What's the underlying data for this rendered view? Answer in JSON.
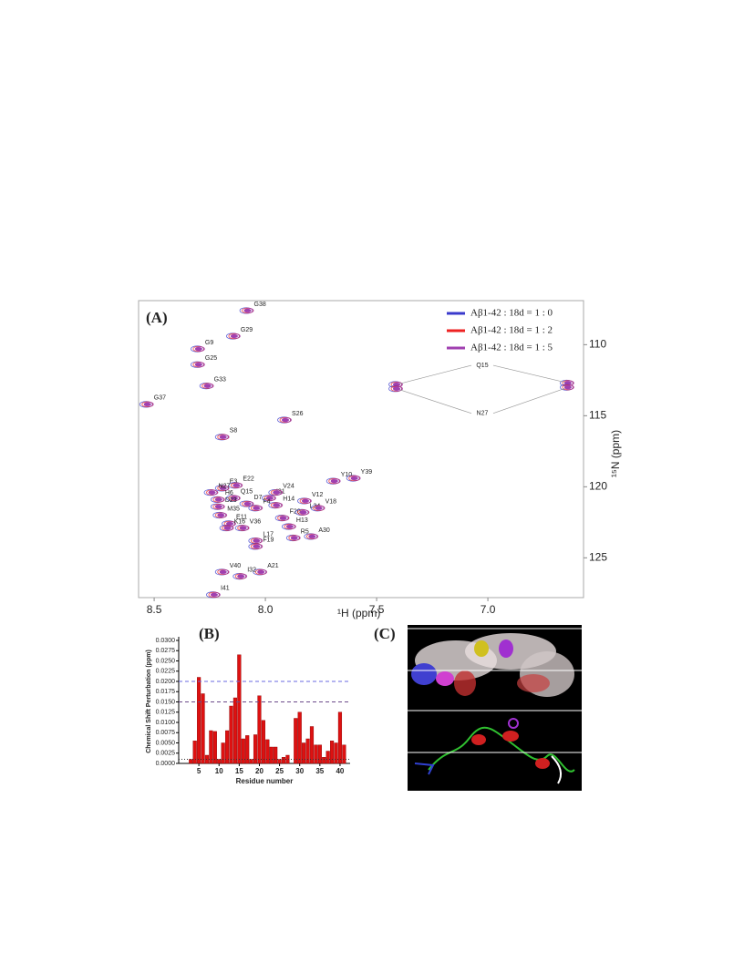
{
  "chart_data": [
    {
      "type": "scatter",
      "title": "(A)",
      "x_label": "¹H (ppm)",
      "y_label": "¹⁵N (ppm)",
      "xlim": [
        8.57,
        6.57
      ],
      "ylim": [
        106.9,
        127.8
      ],
      "xticks": [
        8.5,
        {
          "value": 8,
          "label": "8.0"
        },
        7.5,
        {
          "value": 7,
          "label": "7.0"
        }
      ],
      "yticks": [
        110,
        115,
        120,
        125
      ],
      "series": [
        {
          "name": "Aβ1-42 : 18d = 1 : 0",
          "color": "#3a3acc"
        },
        {
          "name": "Aβ1-42 : 18d = 1 : 2",
          "color": "#ee2222"
        },
        {
          "name": "Aβ1-42 : 18d = 1 : 5",
          "color": "#a040b0"
        }
      ],
      "peaks": [
        {
          "label": "G38",
          "x": 8.08,
          "y": 107.6
        },
        {
          "label": "G29",
          "x": 8.14,
          "y": 109.4
        },
        {
          "label": "G9",
          "x": 8.3,
          "y": 110.3
        },
        {
          "label": "G25",
          "x": 8.3,
          "y": 111.4
        },
        {
          "label": "G33",
          "x": 8.26,
          "y": 112.9
        },
        {
          "label": "G37",
          "x": 8.53,
          "y": 114.2
        },
        {
          "label": "S8",
          "x": 8.19,
          "y": 116.5
        },
        {
          "label": "S26",
          "x": 7.91,
          "y": 115.3
        },
        {
          "label": "E3",
          "x": 8.19,
          "y": 120.1
        },
        {
          "label": "E22",
          "x": 8.13,
          "y": 119.9
        },
        {
          "label": "N27",
          "x": 8.24,
          "y": 120.4
        },
        {
          "label": "H6",
          "x": 8.21,
          "y": 120.9
        },
        {
          "label": "Q15",
          "x": 8.14,
          "y": 120.8
        },
        {
          "label": "D23",
          "x": 8.21,
          "y": 121.4
        },
        {
          "label": "D7",
          "x": 8.08,
          "y": 121.2
        },
        {
          "label": "I31",
          "x": 7.98,
          "y": 120.8
        },
        {
          "label": "V24",
          "x": 7.95,
          "y": 120.4
        },
        {
          "label": "H14",
          "x": 7.95,
          "y": 121.3
        },
        {
          "label": "F4",
          "x": 8.04,
          "y": 121.5
        },
        {
          "label": "M35",
          "x": 8.2,
          "y": 122.0
        },
        {
          "label": "E11",
          "x": 8.16,
          "y": 122.6
        },
        {
          "label": "F20",
          "x": 7.92,
          "y": 122.2
        },
        {
          "label": "V12",
          "x": 7.82,
          "y": 121.0
        },
        {
          "label": "L34",
          "x": 7.83,
          "y": 121.8
        },
        {
          "label": "V18",
          "x": 7.76,
          "y": 121.5
        },
        {
          "label": "Y10",
          "x": 7.69,
          "y": 119.6
        },
        {
          "label": "Y39",
          "x": 7.6,
          "y": 119.4
        },
        {
          "label": "K16",
          "x": 8.17,
          "y": 122.9
        },
        {
          "label": "V36",
          "x": 8.1,
          "y": 122.9
        },
        {
          "label": "H13",
          "x": 7.89,
          "y": 122.8
        },
        {
          "label": "L17",
          "x": 8.04,
          "y": 123.8
        },
        {
          "label": "F19",
          "x": 8.04,
          "y": 124.2
        },
        {
          "label": "R5",
          "x": 7.87,
          "y": 123.6
        },
        {
          "label": "A30",
          "x": 7.79,
          "y": 123.5
        },
        {
          "label": "V40",
          "x": 8.19,
          "y": 126.0
        },
        {
          "label": "A21",
          "x": 8.02,
          "y": 126.0
        },
        {
          "label": "I32",
          "x": 8.11,
          "y": 126.3
        },
        {
          "label": "I41",
          "x": 8.23,
          "y": 127.6
        }
      ],
      "aliased": [
        {
          "label": "Q15",
          "points": [
            [
              7.41,
              112.8
            ],
            [
              6.64,
              112.7
            ]
          ]
        },
        {
          "label": "N27",
          "points": [
            [
              7.41,
              113.1
            ],
            [
              6.64,
              113.0
            ]
          ]
        }
      ]
    },
    {
      "type": "bar",
      "title": "(B)",
      "x_label": "Residue number",
      "y_label": "Chemical Shift Perturbation (ppm)",
      "x": [
        3,
        4,
        5,
        6,
        7,
        8,
        9,
        10,
        11,
        12,
        13,
        14,
        15,
        16,
        17,
        18,
        19,
        20,
        21,
        22,
        23,
        24,
        25,
        26,
        27,
        28,
        29,
        30,
        31,
        32,
        33,
        34,
        35,
        36,
        37,
        38,
        39,
        40,
        41
      ],
      "values": [
        0.001,
        0.0055,
        0.021,
        0.017,
        0.002,
        0.008,
        0.0078,
        0.001,
        0.005,
        0.008,
        0.014,
        0.016,
        0.0265,
        0.006,
        0.0068,
        0.001,
        0.007,
        0.0165,
        0.0105,
        0.0058,
        0.004,
        0.004,
        0.001,
        0.0015,
        0.002,
        null,
        0.011,
        0.0125,
        0.005,
        0.006,
        0.009,
        0.0045,
        0.0045,
        0.0015,
        0.003,
        0.0055,
        0.005,
        0.0125,
        0.0045
      ],
      "color": "#dd1111",
      "xlim": [
        0,
        42.5
      ],
      "ylim": [
        0,
        0.03
      ],
      "xticks": [
        5,
        10,
        15,
        20,
        25,
        30,
        35,
        40
      ],
      "yticks": [
        {
          "value": 0,
          "label": "0.0000"
        },
        {
          "value": 0.0025,
          "label": "0.0025"
        },
        {
          "value": 0.005,
          "label": "0.0050"
        },
        {
          "value": 0.0075,
          "label": "0.0075"
        },
        {
          "value": 0.01,
          "label": "0.0100"
        },
        {
          "value": 0.0125,
          "label": "0.0125"
        },
        {
          "value": 0.015,
          "label": "0.0150"
        },
        {
          "value": 0.0175,
          "label": "0.0175"
        },
        {
          "value": 0.02,
          "label": "0.0200"
        },
        {
          "value": 0.0225,
          "label": "0.0225"
        },
        {
          "value": 0.025,
          "label": "0.0250"
        },
        {
          "value": 0.0275,
          "label": "0.0275"
        },
        {
          "value": 0.03,
          "label": "0.0300"
        }
      ],
      "reference_lines": [
        {
          "value": 0.02,
          "color": "#6a6ae0"
        },
        {
          "value": 0.015,
          "color": "#6a4a8a"
        },
        {
          "value": 0.001,
          "color": "#333333"
        }
      ]
    }
  ],
  "panel_c": {
    "title": "(C)"
  }
}
